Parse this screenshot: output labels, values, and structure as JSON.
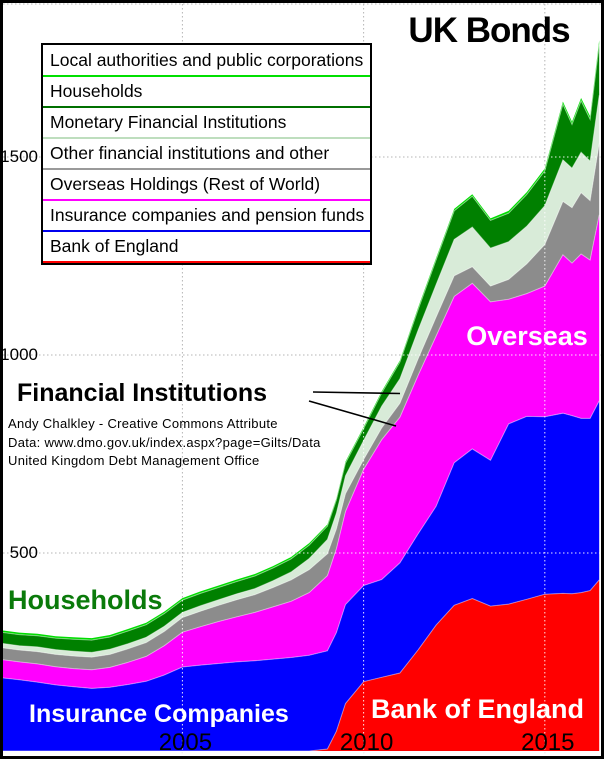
{
  "title": "UK Bonds",
  "legend": {
    "items": [
      {
        "label": "Local authorities and public corporations",
        "color": "#00e000"
      },
      {
        "label": "Households",
        "color": "#007000"
      },
      {
        "label": "Monetary Financial Institutions",
        "color": "#bedebe"
      },
      {
        "label": "Other financial institutions and other",
        "color": "#9a9a9a"
      },
      {
        "label": "Overseas Holdings (Rest of World)",
        "color": "#ff00ff"
      },
      {
        "label": "Insurance companies and pension funds",
        "color": "#0000ee"
      },
      {
        "label": "Bank of England",
        "color": "#ff0000"
      }
    ]
  },
  "annotations": {
    "overseas": "Overseas",
    "households": "Households",
    "insurance": "Insurance Companies",
    "bank_of_england": "Bank of England",
    "financial_institutions": "Financial Institutions",
    "credit_line1": "Andy Chalkley - Creative Commons Attribute",
    "credit_line2": "Data: www.dmo.gov.uk/index.aspx?page=Gilts/Data",
    "credit_line3": "United Kingdom Debt Management Office"
  },
  "chart_data": {
    "type": "area",
    "stacked": true,
    "title": "UK Bonds",
    "unit": "GBP billions (market value of gilt holdings)",
    "xlim": [
      2000.05,
      2016.55
    ],
    "ylim": [
      0,
      1889
    ],
    "grid": true,
    "gridline_color_on_white": "#b4b4b4",
    "gridline_color_on_area": "#ffffff",
    "x_gridlines": [
      2005,
      2010,
      2015
    ],
    "y_gridlines": [
      500,
      1000,
      1500
    ],
    "x_ticks": [
      {
        "label": "2005",
        "x": 2005
      },
      {
        "label": "2010",
        "x": 2010
      },
      {
        "label": "2015",
        "x": 2015
      }
    ],
    "y_ticks": [
      {
        "label": "500",
        "value": 500
      },
      {
        "label": "1000",
        "value": 1000
      },
      {
        "label": "1500",
        "value": 1500
      }
    ],
    "x": [
      2000,
      2000.5,
      2001,
      2001.5,
      2002,
      2002.5,
      2003,
      2003.5,
      2004,
      2004.5,
      2005,
      2005.5,
      2006,
      2006.5,
      2007,
      2007.5,
      2008,
      2008.5,
      2009,
      2009.25,
      2009.5,
      2010,
      2010.5,
      2011,
      2011.5,
      2012,
      2012.5,
      2013,
      2013.5,
      2014,
      2014.5,
      2015,
      2015.5,
      2015.75,
      2016,
      2016.25,
      2016.5
    ],
    "series": [
      {
        "name": "Bank of England",
        "color": "#ff0000",
        "values": [
          0,
          0,
          0,
          0,
          0,
          0,
          0,
          0,
          0,
          0,
          0,
          0,
          0,
          0,
          0,
          0,
          0,
          0,
          5,
          50,
          120,
          175,
          186,
          197,
          255,
          318,
          368,
          385,
          366,
          371,
          383,
          396,
          398,
          397,
          400,
          405,
          432
        ]
      },
      {
        "name": "Insurance companies and pension funds",
        "color": "#0000ff",
        "values": [
          185,
          180,
          174,
          167,
          162,
          158,
          161,
          168,
          176,
          192,
          212,
          217,
          221,
          225,
          228,
          232,
          236,
          242,
          248,
          249,
          250,
          243,
          247,
          278,
          293,
          300,
          360,
          378,
          368,
          455,
          462,
          448,
          455,
          450,
          440,
          435,
          452
        ]
      },
      {
        "name": "Overseas Holdings (Rest of World)",
        "color": "#ff00ff",
        "values": [
          46,
          45,
          46,
          46,
          46,
          47,
          50,
          56,
          63,
          74,
          88,
          97,
          106,
          114,
          122,
          132,
          142,
          158,
          190,
          212,
          235,
          293,
          353,
          368,
          400,
          430,
          420,
          418,
          400,
          315,
          310,
          330,
          400,
          385,
          415,
          400,
          470
        ]
      },
      {
        "name": "Other financial institutions and other",
        "color": "#8c8c8c",
        "values": [
          30,
          30,
          31,
          31,
          32,
          32,
          33,
          34,
          35,
          36,
          37,
          39,
          41,
          43,
          45,
          49,
          54,
          58,
          55,
          50,
          45,
          25,
          30,
          35,
          42,
          48,
          52,
          42,
          40,
          50,
          75,
          105,
          135,
          140,
          155,
          150,
          180
        ]
      },
      {
        "name": "Monetary Financial Institutions",
        "color": "#d8ebd8",
        "values": [
          11,
          11,
          12,
          12,
          12,
          12,
          13,
          13,
          13,
          13,
          13,
          14,
          14,
          15,
          15,
          17,
          20,
          28,
          36,
          40,
          45,
          48,
          55,
          62,
          72,
          82,
          92,
          100,
          96,
          95,
          95,
          98,
          105,
          100,
          102,
          100,
          122
        ]
      },
      {
        "name": "Households",
        "color": "#008000",
        "values": [
          28,
          28,
          28,
          29,
          30,
          31,
          31,
          32,
          32,
          32,
          31,
          31,
          31,
          31,
          32,
          32,
          33,
          34,
          34,
          33,
          32,
          30,
          33,
          42,
          52,
          62,
          72,
          78,
          70,
          72,
          80,
          88,
          140,
          110,
          130,
          105,
          128
        ]
      },
      {
        "name": "Local authorities and public corporations",
        "color": "#00dc00",
        "values": [
          5,
          5,
          5,
          5,
          5,
          5,
          5,
          5,
          5,
          5,
          5,
          5,
          5,
          5,
          5,
          5,
          5,
          5,
          4,
          4,
          4,
          4,
          4,
          4,
          5,
          5,
          5,
          5,
          5,
          6,
          6,
          6,
          7,
          7,
          7,
          8,
          11
        ]
      }
    ]
  }
}
